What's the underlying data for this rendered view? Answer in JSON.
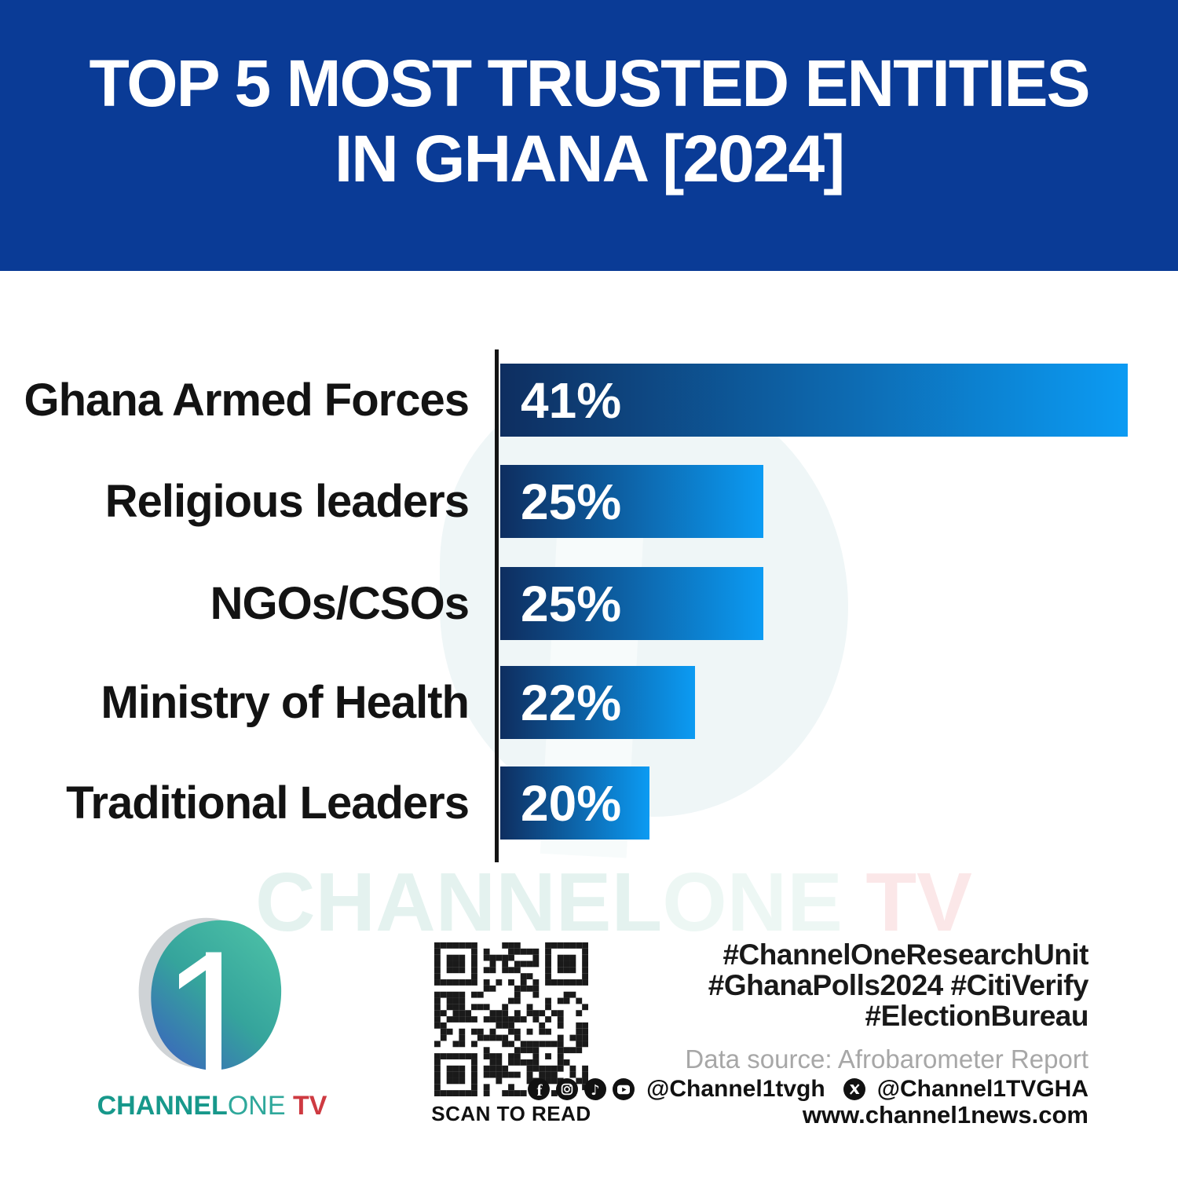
{
  "header": {
    "line1": "TOP 5 MOST TRUSTED ENTITIES",
    "line2": "IN GHANA [2024]"
  },
  "chart_data": {
    "type": "bar",
    "orientation": "horizontal",
    "title": "Top 5 Most Trusted Entities in Ghana [2024]",
    "categories": [
      "Ghana Armed Forces",
      "Religious leaders",
      "NGOs/CSOs",
      "Ministry of Health",
      "Traditional Leaders"
    ],
    "values": [
      41,
      25,
      25,
      22,
      20
    ],
    "value_labels": [
      "41%",
      "25%",
      "25%",
      "22%",
      "20%"
    ],
    "unit": "%",
    "xlim": [
      0,
      45
    ],
    "grid": false,
    "legend": "none",
    "bar_color_start": "#0e2e60",
    "bar_color_end": "#0c9bf3"
  },
  "watermark": {
    "seg1": "CHANNEL",
    "seg2": "ONE",
    "seg3": " TV"
  },
  "footer": {
    "logo_caption": {
      "seg1": "CHANNEL",
      "seg2": "ONE",
      "seg3": " TV"
    },
    "qr_caption": "SCAN TO READ",
    "hashtags": [
      "#ChannelOneResearchUnit",
      "#GhanaPolls2024 #CitiVerify",
      "#ElectionBureau"
    ],
    "data_source": "Data source: Afrobarometer Report",
    "social": {
      "handle_main": "@Channel1tvgh",
      "handle_x": "@Channel1TVGHA",
      "icons": [
        "facebook-icon",
        "instagram-icon",
        "tiktok-icon",
        "youtube-icon",
        "x-icon"
      ]
    },
    "website": "www.channel1news.com"
  },
  "colors": {
    "header_bg": "#0a3b96",
    "bar_dark": "#0e2e60",
    "bar_bright": "#0c9bf3",
    "logo_teal": "#17988b",
    "logo_teal_light": "#2fa89b",
    "logo_red": "#ce3a41",
    "source_gray": "#a7a7a7"
  }
}
